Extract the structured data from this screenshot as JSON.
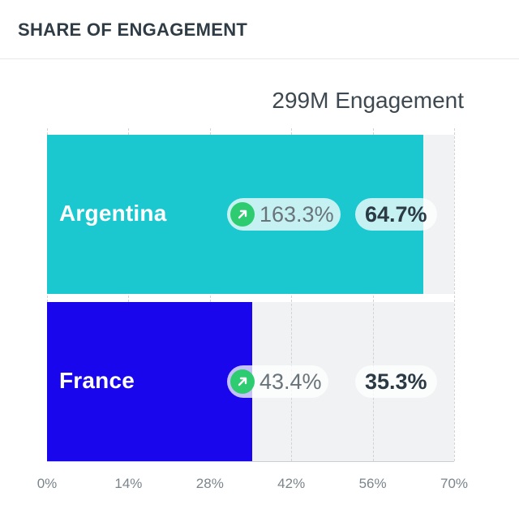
{
  "header": {
    "title": "SHARE OF ENGAGEMENT"
  },
  "summary": {
    "total_label": "299M Engagement"
  },
  "colors": {
    "argentina": "#1bc8cf",
    "france": "#1a06ec",
    "growth_up": "#2ecc71",
    "track": "#f0f2f4"
  },
  "chart_data": {
    "type": "bar",
    "orientation": "horizontal",
    "title": "SHARE OF ENGAGEMENT",
    "subtitle": "299M Engagement",
    "categories": [
      "Argentina",
      "France"
    ],
    "values": [
      64.7,
      35.3
    ],
    "value_labels": [
      "64.7%",
      "35.3%"
    ],
    "growth_labels": [
      "163.3%",
      "43.4%"
    ],
    "growth_direction": [
      "up",
      "up"
    ],
    "xlim": [
      0,
      70
    ],
    "x_ticks": [
      0,
      14,
      28,
      42,
      56,
      70
    ],
    "x_tick_labels": [
      "0%",
      "14%",
      "28%",
      "42%",
      "56%",
      "70%"
    ],
    "grid": true
  }
}
